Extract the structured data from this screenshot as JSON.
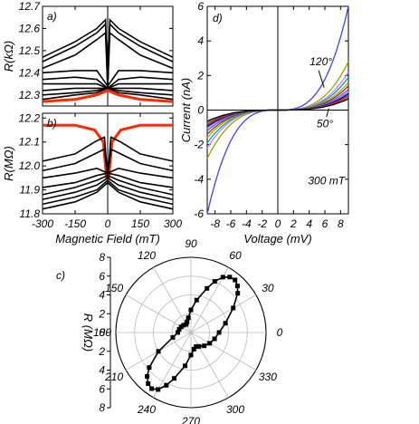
{
  "chart_data": [
    {
      "panel": "a)",
      "type": "line",
      "title": "",
      "xlabel": "",
      "ylabel": "R(kΩ)",
      "xlim": [
        -300,
        300
      ],
      "ylim": [
        12.25,
        12.7
      ],
      "xticks": [
        -300,
        -150,
        0,
        150,
        300
      ],
      "yticks": [
        "12.3",
        "12.4",
        "12.5",
        "12.6",
        "12.7"
      ],
      "series": [
        {
          "color": "#000000",
          "x": [
            -300,
            -150,
            -50,
            -10,
            0,
            10,
            50,
            150,
            300
          ],
          "y": [
            12.47,
            12.54,
            12.6,
            12.64,
            12.33,
            12.64,
            12.6,
            12.54,
            12.47
          ]
        },
        {
          "color": "#000000",
          "x": [
            -300,
            -150,
            -50,
            -10,
            0,
            10,
            50,
            150,
            300
          ],
          "y": [
            12.45,
            12.52,
            12.58,
            12.62,
            12.34,
            12.62,
            12.58,
            12.52,
            12.45
          ]
        },
        {
          "color": "#000000",
          "x": [
            -300,
            -150,
            -50,
            -10,
            0,
            10,
            50,
            150,
            300
          ],
          "y": [
            12.42,
            12.48,
            12.55,
            12.58,
            12.33,
            12.58,
            12.55,
            12.48,
            12.42
          ]
        },
        {
          "color": "#000000",
          "x": [
            -300,
            -150,
            -50,
            0,
            50,
            150,
            300
          ],
          "y": [
            12.4,
            12.41,
            12.41,
            12.34,
            12.41,
            12.41,
            12.4
          ]
        },
        {
          "color": "#000000",
          "x": [
            -300,
            -150,
            -50,
            0,
            50,
            150,
            300
          ],
          "y": [
            12.37,
            12.38,
            12.37,
            12.33,
            12.37,
            12.38,
            12.37
          ]
        },
        {
          "color": "#000000",
          "x": [
            -300,
            -150,
            -50,
            0,
            50,
            150,
            300
          ],
          "y": [
            12.35,
            12.35,
            12.35,
            12.33,
            12.35,
            12.35,
            12.35
          ]
        },
        {
          "color": "#000000",
          "x": [
            -300,
            -150,
            -50,
            0,
            50,
            150,
            300
          ],
          "y": [
            12.32,
            12.33,
            12.33,
            12.33,
            12.33,
            12.33,
            12.32
          ]
        },
        {
          "color": "#000000",
          "x": [
            -300,
            -150,
            -50,
            0,
            50,
            150,
            300
          ],
          "y": [
            12.3,
            12.31,
            12.32,
            12.33,
            12.32,
            12.31,
            12.3
          ]
        },
        {
          "color": "#000000",
          "x": [
            -300,
            -150,
            -50,
            0,
            50,
            150,
            300
          ],
          "y": [
            12.28,
            12.3,
            12.31,
            12.33,
            12.31,
            12.3,
            12.28
          ]
        },
        {
          "color": "#ff2a00",
          "x": [
            -300,
            -150,
            -50,
            0,
            50,
            150,
            300
          ],
          "y": [
            12.27,
            12.28,
            12.3,
            12.32,
            12.3,
            12.28,
            12.27
          ]
        }
      ]
    },
    {
      "panel": "b)",
      "type": "line",
      "title": "",
      "xlabel": "Magnetic Field (mT)",
      "ylabel": "R(MΩ)",
      "xlim": [
        -300,
        300
      ],
      "ylim": [
        11.8,
        12.22
      ],
      "xticks": [
        "-300",
        "-150",
        "0",
        "150",
        "300"
      ],
      "yticks": [
        "11.8",
        "11.9",
        "12.0",
        "12.1",
        "12.2"
      ],
      "series": [
        {
          "color": "#ff2a00",
          "x": [
            -300,
            -150,
            -60,
            -20,
            -5,
            5,
            20,
            60,
            150,
            300
          ],
          "y": [
            12.17,
            12.17,
            12.15,
            12.1,
            11.95,
            11.95,
            12.1,
            12.15,
            12.17,
            12.17
          ]
        },
        {
          "color": "#000000",
          "x": [
            -300,
            -150,
            -60,
            -15,
            0,
            15,
            60,
            150,
            300
          ],
          "y": [
            12.02,
            12.05,
            12.1,
            12.12,
            11.95,
            12.12,
            12.1,
            12.05,
            12.02
          ]
        },
        {
          "color": "#000000",
          "x": [
            -300,
            -150,
            -60,
            -15,
            0,
            15,
            60,
            150,
            300
          ],
          "y": [
            11.98,
            12.01,
            12.05,
            12.07,
            11.96,
            12.07,
            12.05,
            12.01,
            11.98
          ]
        },
        {
          "color": "#000000",
          "x": [
            -300,
            -150,
            -50,
            0,
            50,
            150,
            300
          ],
          "y": [
            11.95,
            11.97,
            11.99,
            11.97,
            11.99,
            11.97,
            11.95
          ]
        },
        {
          "color": "#000000",
          "x": [
            -300,
            -150,
            -50,
            0,
            50,
            150,
            300
          ],
          "y": [
            11.91,
            11.93,
            11.96,
            11.97,
            11.96,
            11.93,
            11.91
          ]
        },
        {
          "color": "#000000",
          "x": [
            -300,
            -150,
            -50,
            0,
            50,
            150,
            300
          ],
          "y": [
            11.88,
            11.91,
            11.94,
            11.96,
            11.94,
            11.91,
            11.88
          ]
        },
        {
          "color": "#000000",
          "x": [
            -300,
            -150,
            -50,
            0,
            50,
            150,
            300
          ],
          "y": [
            11.86,
            11.89,
            11.92,
            11.95,
            11.92,
            11.89,
            11.86
          ]
        },
        {
          "color": "#000000",
          "x": [
            -300,
            -150,
            -50,
            0,
            50,
            150,
            300
          ],
          "y": [
            11.84,
            11.87,
            11.9,
            11.94,
            11.9,
            11.87,
            11.84
          ]
        },
        {
          "color": "#000000",
          "x": [
            -300,
            -150,
            -50,
            0,
            50,
            150,
            300
          ],
          "y": [
            11.82,
            11.85,
            11.89,
            11.93,
            11.89,
            11.85,
            11.82
          ]
        }
      ]
    },
    {
      "panel": "d)",
      "type": "line",
      "title": "",
      "xlabel": "Voltage (mV)",
      "ylabel": "Current (nA)",
      "xlim": [
        -9,
        9
      ],
      "ylim": [
        -6,
        6
      ],
      "xticks": [
        "-8",
        "-6",
        "-4",
        "-2",
        "0",
        "2",
        "4",
        "6",
        "8"
      ],
      "yticks": [
        "-6",
        "-4",
        "-2",
        "0",
        "2",
        "4",
        "6"
      ],
      "annotations": [
        "120°",
        "50°",
        "300 mT"
      ],
      "series": [
        {
          "color": "#4040ff",
          "imax": 6.0
        },
        {
          "color": "#a0a000",
          "imax": 2.8
        },
        {
          "color": "#c080ff",
          "imax": 2.2
        },
        {
          "color": "#00a0a0",
          "imax": 1.9
        },
        {
          "color": "#ff8000",
          "imax": 1.6
        },
        {
          "color": "#008000",
          "imax": 1.4
        },
        {
          "color": "#ff00ff",
          "imax": 1.2
        },
        {
          "color": "#00c0ff",
          "imax": 1.05
        },
        {
          "color": "#0000a0",
          "imax": 0.95
        },
        {
          "color": "#ff0000",
          "imax": 0.85
        },
        {
          "color": "#606060",
          "imax": 0.75
        },
        {
          "color": "#000000",
          "imax": 0.65
        }
      ]
    },
    {
      "panel": "c)",
      "type": "polar",
      "title": "",
      "rlabel": "R (MΩ)",
      "rmax": 8,
      "rticks": [
        "8",
        "6",
        "4",
        "2",
        "0",
        "2",
        "4",
        "6",
        "8"
      ],
      "angle_labels": [
        "0",
        "30",
        "60",
        "90",
        "120",
        "150",
        "180",
        "210",
        "240",
        "270",
        "300",
        "330"
      ],
      "angle_label_values": [
        0,
        30,
        60,
        90,
        120,
        150,
        180,
        210,
        240,
        270,
        300,
        330
      ],
      "theta_deg": [
        0,
        15,
        30,
        40,
        45,
        50,
        55,
        60,
        65,
        70,
        80,
        90,
        100,
        110,
        120,
        135,
        150,
        165,
        180,
        195,
        210,
        220,
        225,
        230,
        235,
        240,
        245,
        250,
        260,
        270,
        280,
        290,
        300,
        315,
        330,
        345
      ],
      "r": [
        3.0,
        3.8,
        5.2,
        6.5,
        7.0,
        7.3,
        7.2,
        6.8,
        6.0,
        5.0,
        3.5,
        2.4,
        1.6,
        1.2,
        1.0,
        1.1,
        1.2,
        1.3,
        1.4,
        2.0,
        4.0,
        5.8,
        6.6,
        7.1,
        7.3,
        7.0,
        6.2,
        5.2,
        3.6,
        2.4,
        1.8,
        1.6,
        1.7,
        2.0,
        2.3,
        2.6
      ]
    }
  ],
  "labels": {
    "panel_a": "a)",
    "panel_b": "b)",
    "panel_c": "c)",
    "panel_d": "d)"
  }
}
